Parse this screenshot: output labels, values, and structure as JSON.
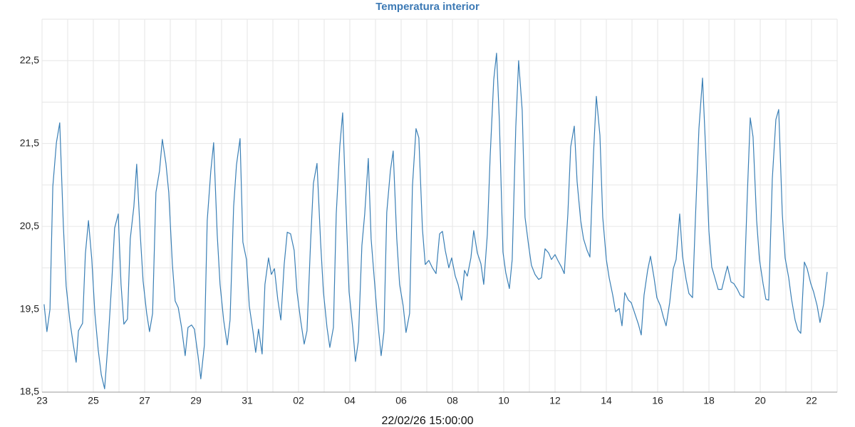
{
  "chart_data": {
    "type": "line",
    "title": "Temperatura interior",
    "xlabel": "22/02/26 15:00:00",
    "color": "#3a7fb5",
    "grid": true,
    "xlim": [
      0,
      31
    ],
    "ylim": [
      18.5,
      23.0
    ],
    "xticks": [
      {
        "value": 0,
        "label": "23"
      },
      {
        "value": 1,
        "label": null
      },
      {
        "value": 2,
        "label": "25"
      },
      {
        "value": 3,
        "label": null
      },
      {
        "value": 4,
        "label": "27"
      },
      {
        "value": 5,
        "label": null
      },
      {
        "value": 6,
        "label": "29"
      },
      {
        "value": 7,
        "label": null
      },
      {
        "value": 8,
        "label": "31"
      },
      {
        "value": 9,
        "label": null
      },
      {
        "value": 10,
        "label": "02"
      },
      {
        "value": 11,
        "label": null
      },
      {
        "value": 12,
        "label": "04"
      },
      {
        "value": 13,
        "label": null
      },
      {
        "value": 14,
        "label": "06"
      },
      {
        "value": 15,
        "label": null
      },
      {
        "value": 16,
        "label": "08"
      },
      {
        "value": 17,
        "label": null
      },
      {
        "value": 18,
        "label": "10"
      },
      {
        "value": 19,
        "label": null
      },
      {
        "value": 20,
        "label": "12"
      },
      {
        "value": 21,
        "label": null
      },
      {
        "value": 22,
        "label": "14"
      },
      {
        "value": 23,
        "label": null
      },
      {
        "value": 24,
        "label": "16"
      },
      {
        "value": 25,
        "label": null
      },
      {
        "value": 26,
        "label": "18"
      },
      {
        "value": 27,
        "label": null
      },
      {
        "value": 28,
        "label": "20"
      },
      {
        "value": 29,
        "label": null
      },
      {
        "value": 30,
        "label": "22"
      },
      {
        "value": 31,
        "label": null
      }
    ],
    "yticks": [
      {
        "value": 18.5,
        "label": "18,5"
      },
      {
        "value": 19,
        "label": null
      },
      {
        "value": 19.5,
        "label": "19,5"
      },
      {
        "value": 20,
        "label": null
      },
      {
        "value": 20.5,
        "label": "20,5"
      },
      {
        "value": 21,
        "label": null
      },
      {
        "value": 21.5,
        "label": "21,5"
      },
      {
        "value": 22,
        "label": null
      },
      {
        "value": 22.5,
        "label": "22,5"
      },
      {
        "value": 23,
        "label": null
      }
    ],
    "x": [
      0.08,
      0.19,
      0.31,
      0.42,
      0.56,
      0.69,
      0.83,
      0.94,
      1.08,
      1.22,
      1.33,
      1.42,
      1.58,
      1.69,
      1.81,
      1.94,
      2.06,
      2.19,
      2.31,
      2.44,
      2.58,
      2.72,
      2.83,
      2.97,
      3.08,
      3.19,
      3.33,
      3.44,
      3.58,
      3.69,
      3.83,
      3.94,
      4.08,
      4.19,
      4.31,
      4.44,
      4.58,
      4.69,
      4.83,
      4.94,
      5.08,
      5.19,
      5.31,
      5.44,
      5.58,
      5.69,
      5.83,
      5.94,
      6.08,
      6.19,
      6.33,
      6.44,
      6.58,
      6.69,
      6.83,
      6.94,
      7.08,
      7.22,
      7.33,
      7.47,
      7.58,
      7.72,
      7.83,
      7.97,
      8.08,
      8.22,
      8.33,
      8.44,
      8.58,
      8.69,
      8.83,
      8.94,
      9.06,
      9.19,
      9.31,
      9.44,
      9.56,
      9.69,
      9.83,
      9.94,
      10.08,
      10.22,
      10.33,
      10.47,
      10.58,
      10.72,
      10.86,
      10.97,
      11.11,
      11.22,
      11.36,
      11.47,
      11.61,
      11.72,
      11.86,
      11.97,
      12.11,
      12.22,
      12.33,
      12.47,
      12.58,
      12.72,
      12.83,
      12.97,
      13.08,
      13.22,
      13.33,
      13.44,
      13.58,
      13.69,
      13.83,
      13.94,
      14.08,
      14.19,
      14.33,
      14.44,
      14.58,
      14.69,
      14.83,
      14.94,
      15.08,
      15.22,
      15.36,
      15.5,
      15.61,
      15.72,
      15.86,
      15.97,
      16.11,
      16.22,
      16.36,
      16.47,
      16.58,
      16.72,
      16.83,
      16.97,
      17.11,
      17.22,
      17.36,
      17.47,
      17.61,
      17.72,
      17.83,
      17.97,
      18.08,
      18.22,
      18.33,
      18.47,
      18.58,
      18.72,
      18.83,
      18.97,
      19.08,
      19.22,
      19.36,
      19.47,
      19.61,
      19.75,
      19.86,
      20.0,
      20.11,
      20.25,
      20.36,
      20.5,
      20.61,
      20.75,
      20.86,
      21.0,
      21.11,
      21.25,
      21.36,
      21.5,
      21.61,
      21.75,
      21.86,
      22.0,
      22.11,
      22.25,
      22.36,
      22.5,
      22.61,
      22.72,
      22.86,
      22.97,
      23.11,
      23.25,
      23.36,
      23.47,
      23.61,
      23.72,
      23.86,
      23.97,
      24.11,
      24.22,
      24.33,
      24.47,
      24.61,
      24.72,
      24.86,
      24.97,
      25.11,
      25.22,
      25.36,
      25.47,
      25.61,
      25.75,
      25.86,
      26.0,
      26.11,
      26.25,
      26.36,
      26.5,
      26.61,
      26.72,
      26.86,
      26.97,
      27.11,
      27.22,
      27.36,
      27.5,
      27.61,
      27.72,
      27.86,
      27.97,
      28.11,
      28.22,
      28.33,
      28.47,
      28.61,
      28.72,
      28.86,
      28.97,
      29.11,
      29.22,
      29.36,
      29.47,
      29.58,
      29.72,
      29.83,
      29.97,
      30.08,
      30.22,
      30.33,
      30.47,
      30.61
    ],
    "values": [
      19.56,
      19.23,
      19.5,
      20.98,
      21.51,
      21.75,
      20.52,
      19.78,
      19.37,
      19.07,
      18.86,
      19.24,
      19.33,
      20.17,
      20.57,
      20.1,
      19.45,
      19.01,
      18.71,
      18.54,
      19.13,
      19.84,
      20.48,
      20.65,
      19.8,
      19.32,
      19.38,
      20.35,
      20.74,
      21.25,
      20.4,
      19.84,
      19.45,
      19.23,
      19.45,
      20.91,
      21.17,
      21.55,
      21.26,
      20.91,
      20.05,
      19.6,
      19.52,
      19.28,
      18.94,
      19.28,
      19.31,
      19.26,
      18.94,
      18.66,
      19.07,
      20.57,
      21.17,
      21.51,
      20.4,
      19.8,
      19.37,
      19.07,
      19.37,
      20.74,
      21.24,
      21.56,
      20.31,
      20.1,
      19.54,
      19.24,
      18.98,
      19.26,
      18.96,
      19.8,
      20.12,
      19.92,
      19.99,
      19.62,
      19.37,
      20.04,
      20.43,
      20.41,
      20.21,
      19.71,
      19.37,
      19.08,
      19.24,
      20.31,
      21.02,
      21.26,
      20.31,
      19.71,
      19.28,
      19.04,
      19.28,
      20.65,
      21.47,
      21.87,
      20.65,
      19.71,
      19.28,
      18.87,
      19.11,
      20.27,
      20.65,
      21.32,
      20.35,
      19.8,
      19.37,
      18.94,
      19.23,
      20.67,
      21.17,
      21.41,
      20.35,
      19.8,
      19.54,
      19.22,
      19.45,
      20.98,
      21.68,
      21.57,
      20.47,
      20.04,
      20.09,
      20.0,
      19.93,
      20.41,
      20.44,
      20.21,
      20.0,
      20.12,
      19.9,
      19.8,
      19.61,
      19.97,
      19.9,
      20.12,
      20.45,
      20.18,
      20.05,
      19.8,
      20.4,
      21.34,
      22.27,
      22.59,
      21.77,
      20.19,
      19.94,
      19.75,
      20.1,
      21.7,
      22.5,
      21.9,
      20.61,
      20.27,
      20.03,
      19.92,
      19.86,
      19.88,
      20.23,
      20.18,
      20.1,
      20.16,
      20.09,
      20.01,
      19.93,
      20.65,
      21.46,
      21.71,
      21.04,
      20.57,
      20.35,
      20.21,
      20.13,
      21.38,
      22.07,
      21.6,
      20.61,
      20.1,
      19.88,
      19.67,
      19.47,
      19.51,
      19.3,
      19.7,
      19.61,
      19.58,
      19.45,
      19.32,
      19.19,
      19.67,
      19.97,
      20.14,
      19.88,
      19.64,
      19.54,
      19.41,
      19.3,
      19.58,
      19.99,
      20.1,
      20.65,
      20.14,
      19.86,
      19.69,
      19.64,
      20.57,
      21.68,
      22.29,
      21.51,
      20.44,
      20.01,
      19.86,
      19.74,
      19.74,
      19.88,
      20.02,
      19.83,
      19.81,
      19.74,
      19.67,
      19.64,
      20.91,
      21.81,
      21.58,
      20.57,
      20.1,
      19.81,
      19.62,
      19.61,
      21.07,
      21.79,
      21.91,
      20.65,
      20.12,
      19.88,
      19.62,
      19.37,
      19.25,
      19.21,
      20.07,
      19.99,
      19.81,
      19.71,
      19.54,
      19.34,
      19.56,
      19.95
    ]
  }
}
